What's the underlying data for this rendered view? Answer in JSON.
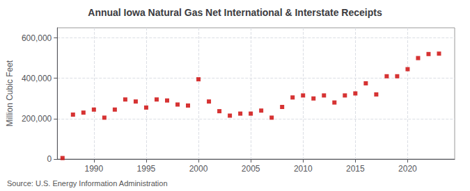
{
  "chart_data": {
    "type": "scatter",
    "title": "Annual Iowa Natural Gas Net International & Interstate Receipts",
    "ylabel": "Million Cubic Feet",
    "annotation": "Source: U.S. Energy Information Administration",
    "x": [
      1987,
      1988,
      1989,
      1990,
      1991,
      1992,
      1993,
      1994,
      1995,
      1996,
      1997,
      1998,
      1999,
      2000,
      2001,
      2002,
      2003,
      2004,
      2005,
      2006,
      2007,
      2008,
      2009,
      2010,
      2011,
      2012,
      2013,
      2014,
      2015,
      2016,
      2017,
      2018,
      2019,
      2020,
      2021,
      2022,
      2023
    ],
    "values": [
      5000,
      220000,
      230000,
      245000,
      205000,
      245000,
      295000,
      285000,
      255000,
      295000,
      290000,
      270000,
      265000,
      395000,
      285000,
      237000,
      215000,
      225000,
      225000,
      240000,
      205000,
      258000,
      305000,
      315000,
      300000,
      315000,
      280000,
      315000,
      325000,
      375000,
      320000,
      410000,
      410000,
      445000,
      500000,
      520000,
      522000
    ],
    "color": "#cc0000",
    "marker": "square",
    "xlim": [
      1986.5,
      2024.5
    ],
    "ylim": [
      0,
      650000
    ],
    "xticks": [
      1990,
      1995,
      2000,
      2005,
      2010,
      2015,
      2020
    ],
    "yticks": [
      0,
      {
        "value": 200000,
        "label": "200,000"
      },
      {
        "value": 400000,
        "label": "400,000"
      },
      {
        "value": 600000,
        "label": "600,000"
      }
    ],
    "grid": true
  }
}
